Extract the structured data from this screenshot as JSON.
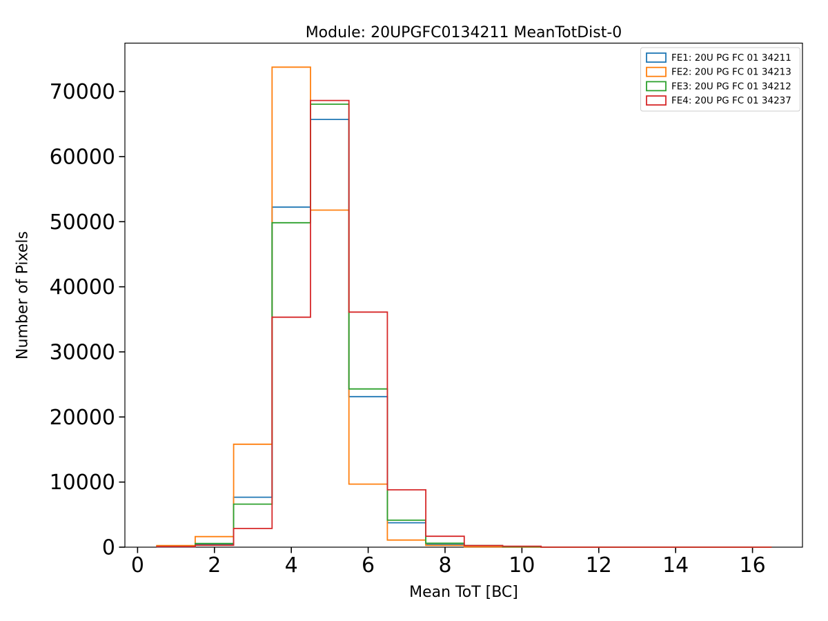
{
  "figure": {
    "background": "#ffffff",
    "frame_color": "#000000"
  },
  "chart_data": {
    "type": "step-histogram",
    "title": "Module: 20UPGFC0134211 MeanTotDist-0",
    "xlabel": "Mean ToT [BC]",
    "ylabel": "Number of Pixels",
    "xlim": [
      -0.33,
      17.3
    ],
    "ylim": [
      0,
      77430
    ],
    "x_ticks": [
      0,
      2,
      4,
      6,
      8,
      10,
      12,
      14,
      16
    ],
    "y_ticks": [
      0,
      10000,
      20000,
      30000,
      40000,
      50000,
      60000,
      70000
    ],
    "grid": false,
    "legend_position": "upper right",
    "bin_edges": [
      0.5,
      1.5,
      2.5,
      3.5,
      4.5,
      5.5,
      6.5,
      7.5,
      8.5,
      9.5,
      10.5,
      11.5,
      12.5,
      13.5,
      14.5,
      15.5,
      16.5
    ],
    "series": [
      {
        "name": "FE1: 20U PG FC 01 34211",
        "color": "#1f77b4",
        "values": [
          60,
          450,
          7670,
          52240,
          65710,
          23130,
          3750,
          400,
          150,
          30,
          0,
          0,
          0,
          0,
          0,
          0
        ]
      },
      {
        "name": "FE2: 20U PG FC 01 34213",
        "color": "#ff7f0e",
        "values": [
          240,
          1620,
          15810,
          73740,
          51780,
          9690,
          1090,
          280,
          50,
          10,
          0,
          0,
          0,
          0,
          0,
          0
        ]
      },
      {
        "name": "FE3: 20U PG FC 01 34212",
        "color": "#2ca02c",
        "values": [
          100,
          560,
          6610,
          49840,
          68050,
          24300,
          4140,
          600,
          250,
          60,
          0,
          0,
          0,
          0,
          0,
          0
        ]
      },
      {
        "name": "FE4: 20U PG FC 01 34237",
        "color": "#d62728",
        "values": [
          80,
          300,
          2870,
          35330,
          68620,
          36110,
          8810,
          1670,
          250,
          150,
          0,
          0,
          0,
          0,
          0,
          0
        ]
      }
    ]
  }
}
